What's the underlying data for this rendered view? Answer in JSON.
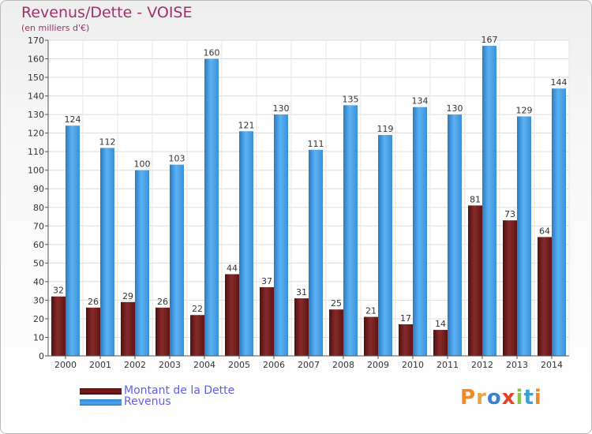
{
  "colors": {
    "dette": "#7a1d1d",
    "revenus": "#3f9be6",
    "title": "#a0306a",
    "legend_text": "#5f5fe8"
  },
  "chart_data": {
    "type": "bar",
    "title": "Revenus/Dette - VOISE",
    "subtitle": "(en milliers d'€)",
    "xlabel": "",
    "ylabel": "",
    "ylim": [
      0,
      170
    ],
    "yticks": [
      0,
      10,
      20,
      30,
      40,
      50,
      60,
      70,
      80,
      90,
      100,
      110,
      120,
      130,
      140,
      150,
      160,
      170
    ],
    "grid": true,
    "legend_position": "bottom-left",
    "categories": [
      "2000",
      "2001",
      "2002",
      "2003",
      "2004",
      "2005",
      "2006",
      "2007",
      "2008",
      "2009",
      "2010",
      "2011",
      "2012",
      "2013",
      "2014"
    ],
    "series": [
      {
        "name": "Montant de la Dette",
        "color": "#7a1d1d",
        "values": [
          32,
          26,
          29,
          26,
          22,
          44,
          37,
          31,
          25,
          21,
          17,
          14,
          81,
          73,
          64
        ]
      },
      {
        "name": "Revenus",
        "color": "#3f9be6",
        "values": [
          124,
          112,
          100,
          103,
          160,
          121,
          130,
          111,
          135,
          119,
          134,
          130,
          167,
          129,
          144
        ]
      }
    ]
  },
  "legend": {
    "items": [
      {
        "label": "Montant de la Dette"
      },
      {
        "label": "Revenus"
      }
    ]
  },
  "logo": {
    "text": "Proxiti"
  }
}
